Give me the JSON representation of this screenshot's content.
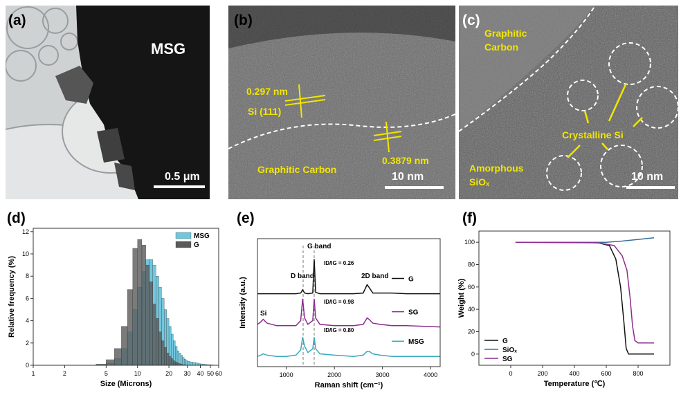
{
  "panels": {
    "a": {
      "label": "(a)",
      "sample": "MSG",
      "scale_bar": "0.5 μm"
    },
    "b": {
      "label": "(b)",
      "d_spacing_1": "0.297 nm",
      "plane": "Si (111)",
      "d_spacing_2": "0.3879 nm",
      "region": "Graphitic Carbon",
      "scale_bar": "10 nm"
    },
    "c": {
      "label": "(c)",
      "graphitic": [
        "Graphitic",
        "Carbon"
      ],
      "crystalline": "Crystalline Si",
      "amorphous": [
        "Amorphous",
        "SiOₓ"
      ],
      "scale_bar": "10 nm"
    }
  },
  "chart_data": [
    {
      "type": "histogram",
      "panel_label": "(d)",
      "x_label": "Size (Microns)",
      "y_label": "Relative frequency (%)",
      "x_scale": "log",
      "legend": "upper right",
      "bins": [
        4,
        5,
        6,
        7,
        8,
        9,
        10,
        11,
        12,
        13,
        14,
        15,
        16,
        17,
        18,
        19,
        20,
        21,
        22,
        23,
        24,
        25,
        26,
        27,
        28,
        29,
        30,
        32,
        34,
        36,
        38,
        40,
        42,
        44,
        46,
        48,
        50,
        52,
        54
      ],
      "series": [
        {
          "name": "MSG",
          "color": "#72c7dc",
          "values": [
            0.05,
            0.2,
            0.6,
            1.5,
            3,
            5,
            7,
            8.4,
            9.5,
            9.5,
            9,
            8,
            7,
            6,
            5,
            4.2,
            3.5,
            2.8,
            2.2,
            1.7,
            1.3,
            1.1,
            0.9,
            0.7,
            0.55,
            0.45,
            0.35,
            0.3,
            0.25,
            0.2,
            0.15,
            0.12,
            0.1,
            0.08,
            0.06,
            0.05,
            0.04,
            0.03
          ]
        },
        {
          "name": "G",
          "color": "#5a5a5a",
          "values": [
            0.1,
            0.5,
            1.5,
            3.5,
            6.8,
            10.5,
            11.3,
            10.8,
            9,
            7.5,
            5.5,
            4.2,
            3,
            2.2,
            1.6,
            1.1,
            0.8,
            0.6,
            0.4,
            0.3,
            0.2,
            0.15,
            0.1,
            0.05,
            0.05,
            0.02,
            0,
            0,
            0,
            0,
            0,
            0,
            0,
            0,
            0,
            0,
            0,
            0
          ]
        }
      ],
      "xlim": [
        1,
        60
      ],
      "xticks": [
        1,
        2,
        5,
        10,
        20,
        30,
        40,
        50,
        60
      ],
      "ylim": [
        0,
        12.3
      ],
      "yticks": [
        0,
        2,
        4,
        6,
        8,
        10,
        12
      ]
    },
    {
      "type": "line",
      "panel_label": "(e)",
      "x_label": "Raman shift (cm⁻¹)",
      "y_label": "Intensity (a.u.)",
      "legend": "beside",
      "x": [
        400,
        470,
        520,
        600,
        800,
        1000,
        1200,
        1300,
        1340,
        1380,
        1450,
        1550,
        1580,
        1610,
        1700,
        2000,
        2400,
        2600,
        2680,
        2720,
        2800,
        2950,
        3200,
        3500,
        4200
      ],
      "series": [
        {
          "name": "G",
          "color": "#111111",
          "values": [
            57,
            57,
            57,
            57,
            57,
            57,
            57,
            57.5,
            60,
            57.5,
            57,
            57.5,
            84,
            58,
            57,
            57,
            57,
            57.5,
            64,
            62,
            57.5,
            57.5,
            57.5,
            57,
            57
          ]
        },
        {
          "name": "SG",
          "color": "#8b2c8f",
          "values": [
            33,
            35,
            37,
            34,
            32,
            32,
            32,
            36,
            53,
            38,
            33,
            36,
            53,
            38,
            33,
            32,
            32,
            33,
            38,
            37,
            34,
            33,
            32,
            32,
            31
          ]
        },
        {
          "name": "MSG",
          "color": "#3aa9bd",
          "values": [
            8,
            9,
            10,
            9,
            8,
            8,
            9,
            13,
            23,
            16,
            11,
            14,
            23,
            14,
            10,
            9,
            8,
            9,
            12,
            12,
            10,
            9,
            8,
            8,
            8
          ]
        }
      ],
      "vlines": [
        1350,
        1580
      ],
      "annotations": [
        "G band",
        "D band",
        "2D band",
        "Si",
        "ID/IG = 0.26",
        "ID/IG = 0.98",
        "ID/IG = 0.80"
      ],
      "xlim": [
        400,
        4200
      ],
      "xticks": [
        1000,
        2000,
        3000,
        4000
      ],
      "ylim": [
        0,
        100
      ]
    },
    {
      "type": "line",
      "panel_label": "(f)",
      "x_label": "Temperature (℃)",
      "y_label": "Weight (%)",
      "legend": "lower left",
      "series": [
        {
          "name": "G",
          "color": "#111111",
          "x": [
            30,
            400,
            550,
            620,
            660,
            690,
            710,
            725,
            740,
            900
          ],
          "values": [
            100,
            100,
            99.5,
            97,
            85,
            60,
            30,
            5,
            0,
            0
          ]
        },
        {
          "name": "SiOₓ",
          "color": "#3b6e9a",
          "x": [
            30,
            600,
            700,
            800,
            900
          ],
          "values": [
            100,
            100,
            101,
            102.5,
            104
          ]
        },
        {
          "name": "SG",
          "color": "#8b2c8f",
          "x": [
            30,
            550,
            650,
            700,
            730,
            750,
            765,
            780,
            800,
            900
          ],
          "values": [
            100,
            99.5,
            97,
            88,
            75,
            50,
            25,
            12,
            10,
            10
          ]
        }
      ],
      "xlim": [
        -200,
        1000
      ],
      "xticks": [
        0,
        200,
        400,
        600,
        800
      ],
      "ylim": [
        -10,
        110
      ],
      "yticks": [
        0,
        20,
        40,
        60,
        80,
        100
      ]
    }
  ]
}
